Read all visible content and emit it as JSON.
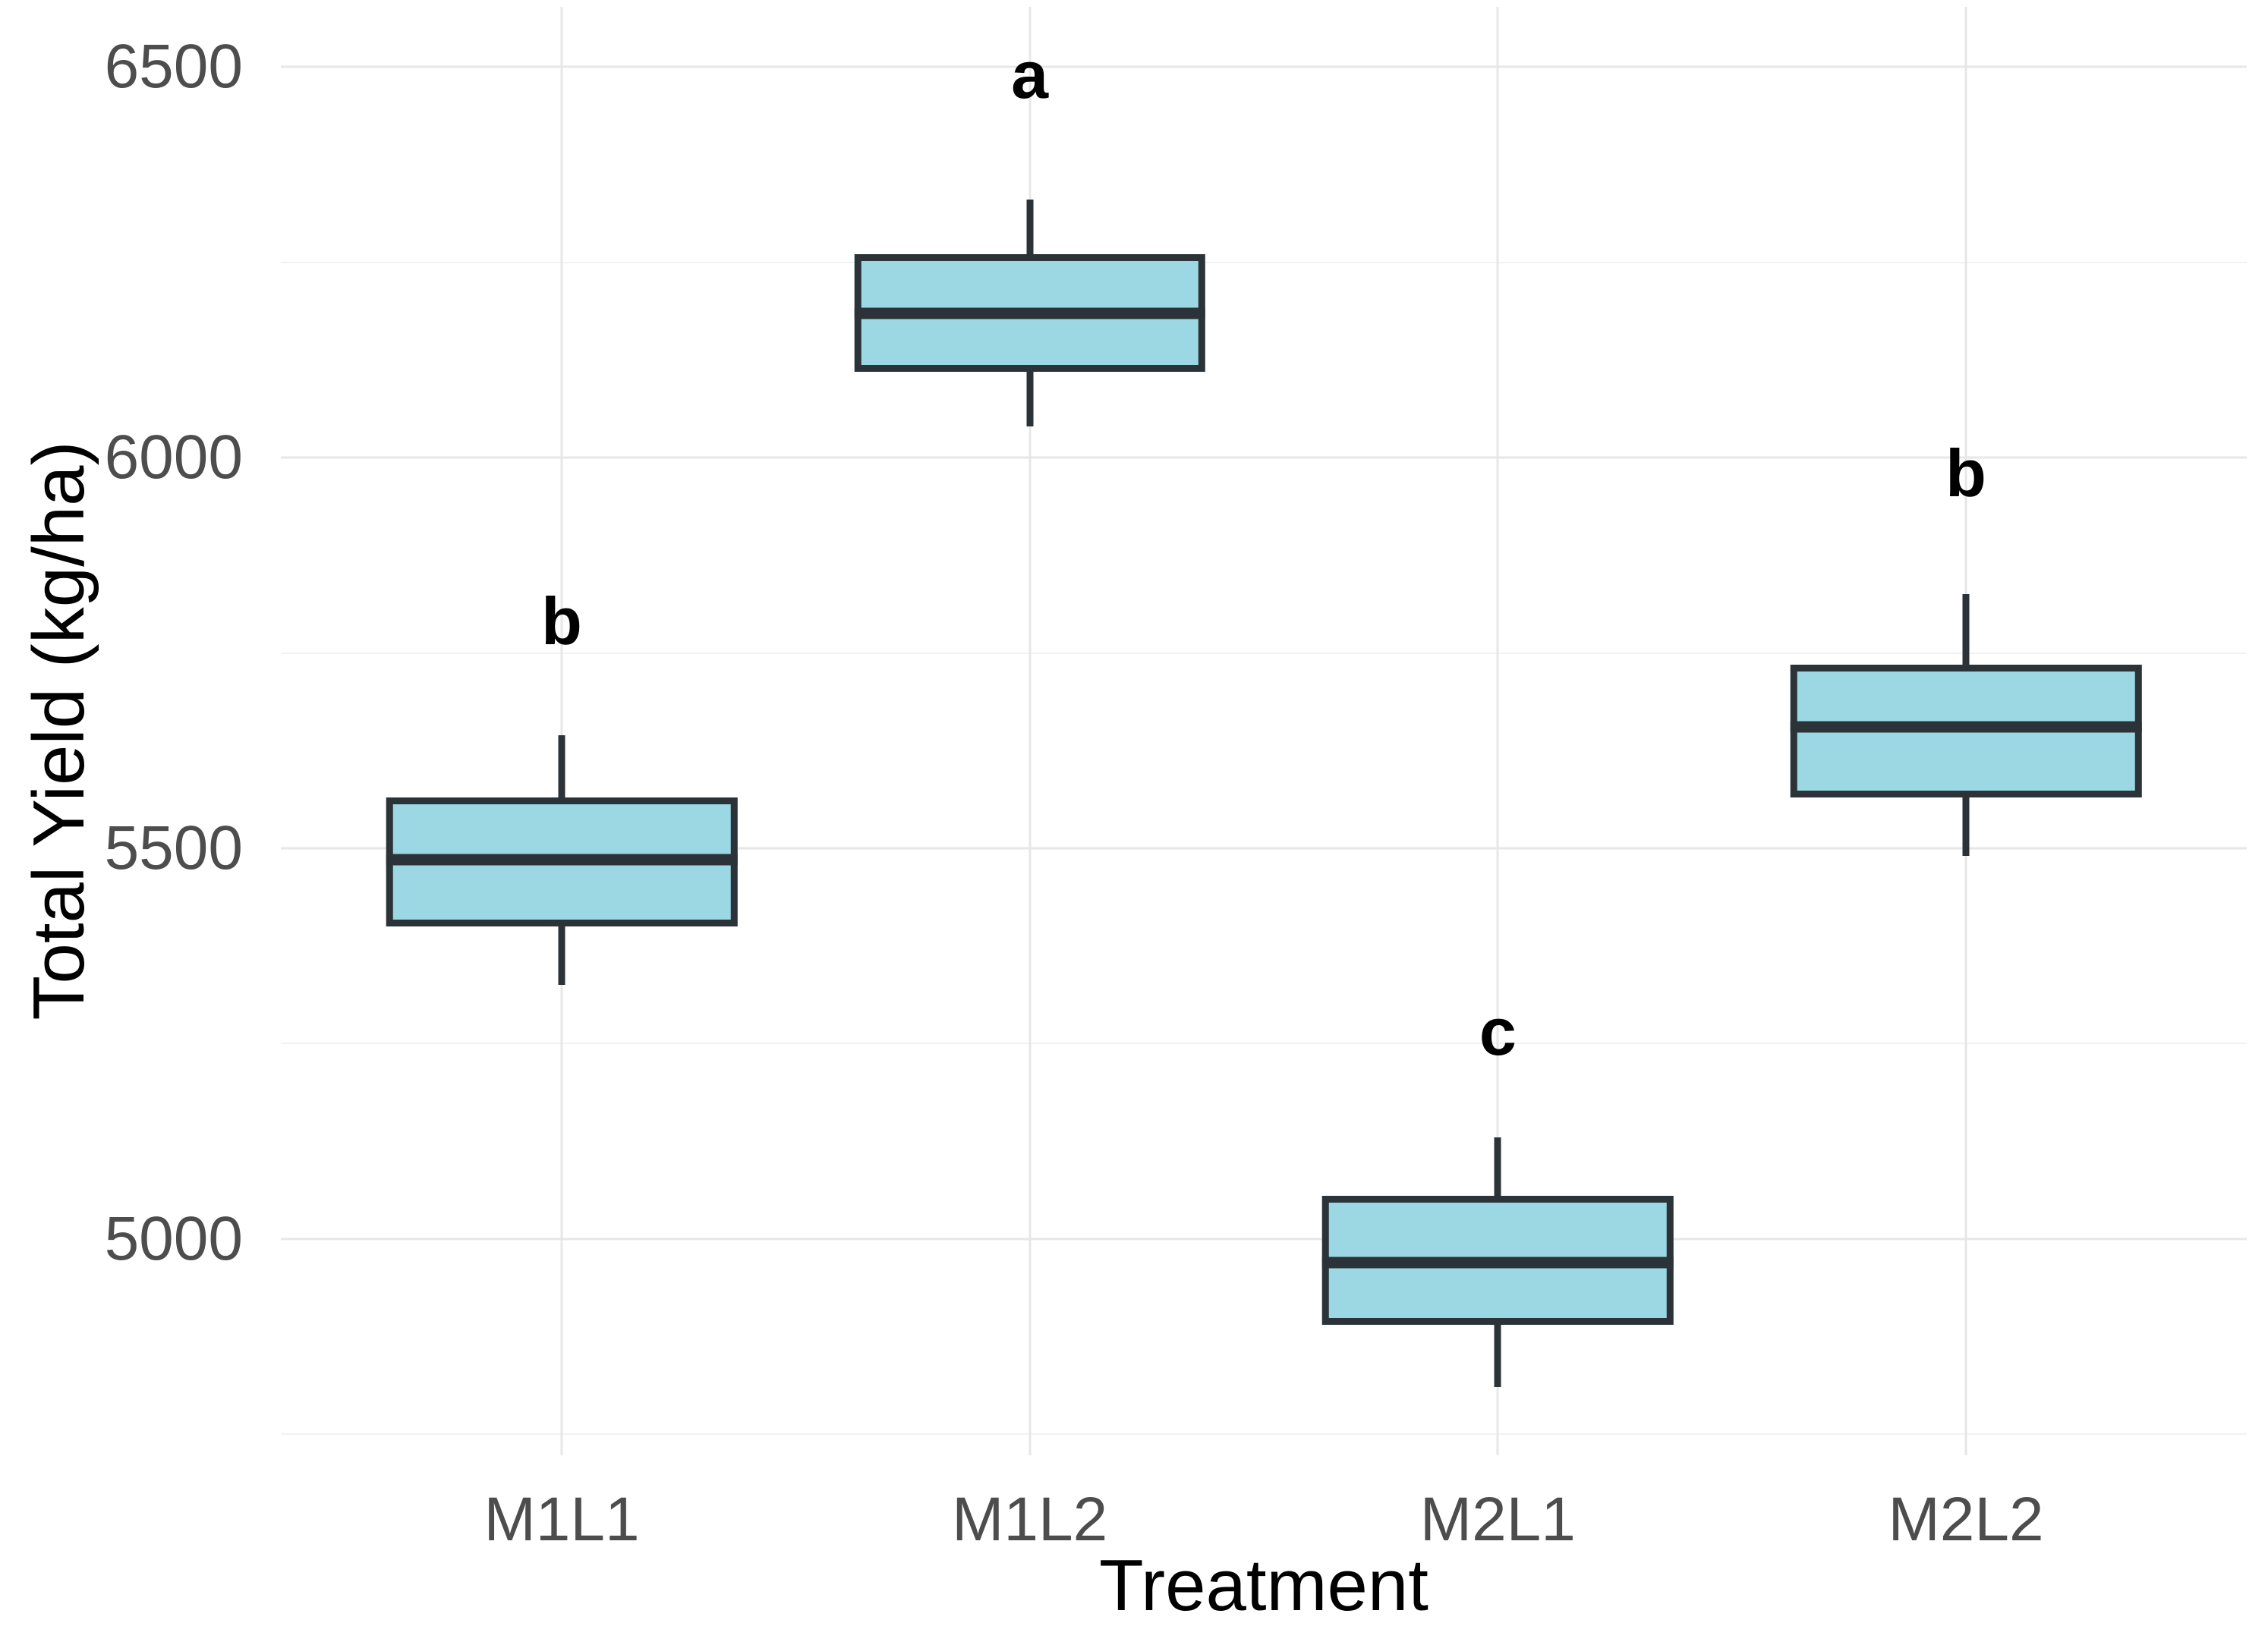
{
  "figure": {
    "x_axis_title": "Treatment",
    "y_axis_title": "Total Yield (kg/ha)"
  },
  "chart_data": {
    "type": "boxplot",
    "title": "",
    "xlabel": "Treatment",
    "ylabel": "Total Yield (kg/ha)",
    "categories": [
      "M1L1",
      "M1L2",
      "M2L1",
      "M2L2"
    ],
    "y_ticks": [
      {
        "label": "6500",
        "value": 6500
      },
      {
        "label": "6000",
        "value": 6000
      },
      {
        "label": "5500",
        "value": 5500
      },
      {
        "label": "5000",
        "value": 5000
      }
    ],
    "y_minor_gridlines": [
      6250,
      5750,
      5250,
      4750
    ],
    "ylim": [
      4723,
      6577
    ],
    "grid": "major-and-minor, horizontal and vertical-at-categories, no axis lines, white background",
    "legend": "none",
    "series": [
      {
        "category": "M1L1",
        "whisker_low": 5325,
        "q1": 5400,
        "median": 5485,
        "q3": 5565,
        "whisker_high": 5645,
        "sig_letter": "b",
        "letter_y": 5790
      },
      {
        "category": "M1L2",
        "whisker_low": 6040,
        "q1": 6110,
        "median": 6185,
        "q3": 6260,
        "whisker_high": 6330,
        "sig_letter": "a",
        "letter_y": 6490
      },
      {
        "category": "M2L1",
        "whisker_low": 4810,
        "q1": 4890,
        "median": 4970,
        "q3": 5055,
        "whisker_high": 5130,
        "sig_letter": "c",
        "letter_y": 5265
      },
      {
        "category": "M2L2",
        "whisker_low": 5490,
        "q1": 5565,
        "median": 5655,
        "q3": 5735,
        "whisker_high": 5825,
        "sig_letter": "b",
        "letter_y": 5980
      }
    ],
    "box_width_fraction": 0.75,
    "colors": {
      "box_fill": "#9BD8E4",
      "box_border": "#2B3338",
      "grid_major": "#E7E7E7",
      "grid_minor": "#F2F2F2",
      "tick_label": "#4D4D4D",
      "axis_title": "#000000",
      "sig_letter": "#000000",
      "background": "#FFFFFF"
    }
  }
}
